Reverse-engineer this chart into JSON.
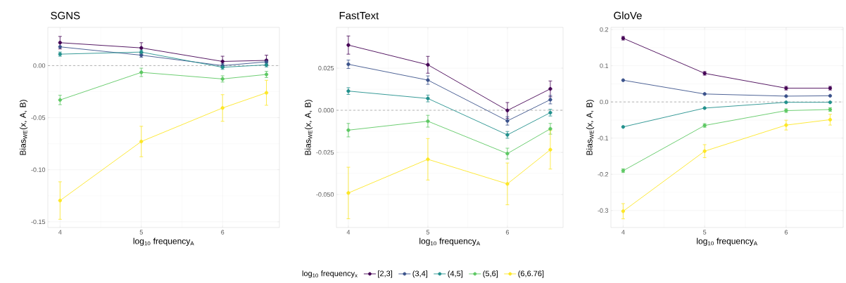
{
  "chart_data": [
    {
      "type": "line",
      "title": "SGNS",
      "xlabel": "log$_{10}$ frequency$_{A}$",
      "ylabel": "Bias$_{WE}$(x, A, B)",
      "x": [
        4,
        5,
        6,
        6.54
      ],
      "xlim": [
        3.85,
        6.7
      ],
      "xticks": [
        4,
        5,
        6
      ],
      "ylim": [
        -0.1555,
        0.0367
      ],
      "yticks": [
        {
          "value": 0,
          "label": "0.00"
        },
        {
          "value": -0.05,
          "label": "-0.05"
        },
        {
          "value": -0.1,
          "label": "-0.10"
        },
        {
          "value": -0.15,
          "label": "-0.15"
        }
      ],
      "grid": true,
      "marker": "circle",
      "line_style": "solid",
      "legend": "bottom",
      "legend_title": "log$_{10}$ frequency$_{x}$",
      "ref_lines": [
        {
          "axis": "y",
          "value": 0,
          "color": "#888888",
          "line_style": "dashed"
        }
      ],
      "series": [
        {
          "name": "[2,3]",
          "color": "#440154",
          "values": [
            0.022,
            0.017,
            0.004,
            0.005
          ],
          "errors": [
            0.006,
            0.005,
            0.005,
            0.005
          ]
        },
        {
          "name": "(3,4]",
          "color": "#3b528b",
          "values": [
            0.018,
            0.01,
            0.0,
            0.0036
          ],
          "errors": [
            null,
            0.002,
            0.002,
            0.002
          ]
        },
        {
          "name": "(4,5]",
          "color": "#21908c",
          "values": [
            0.011,
            0.013,
            -0.0016,
            0.0007
          ],
          "errors": [
            0.002,
            0.002,
            0.002,
            0.002
          ]
        },
        {
          "name": "(5,6]",
          "color": "#5dc863",
          "values": [
            -0.033,
            -0.0065,
            -0.0128,
            -0.0085
          ],
          "errors": [
            0.0045,
            0.004,
            0.003,
            0.003
          ]
        },
        {
          "name": "(6,6.76]",
          "color": "#fde725",
          "values": [
            -0.1296,
            -0.0729,
            -0.0407,
            -0.0261
          ],
          "errors": [
            0.018,
            0.0146,
            0.0128,
            0.012
          ]
        }
      ]
    },
    {
      "type": "line",
      "title": "FastText",
      "xlabel": "log$_{10}$ frequency$_{A}$",
      "ylabel": "Bias$_{WE}$(x, A, B)",
      "x": [
        4,
        5,
        6,
        6.54
      ],
      "xlim": [
        3.85,
        6.7
      ],
      "xticks": [
        4,
        5,
        6
      ],
      "ylim": [
        -0.0696,
        0.0492
      ],
      "yticks": [
        {
          "value": 0.025,
          "label": "0.025"
        },
        {
          "value": 0,
          "label": "0.000"
        },
        {
          "value": -0.025,
          "label": "-0.025"
        },
        {
          "value": -0.05,
          "label": "-0.050"
        }
      ],
      "grid": true,
      "marker": "circle",
      "line_style": "solid",
      "ref_lines": [
        {
          "axis": "y",
          "value": 0,
          "color": "#888888",
          "line_style": "dashed"
        }
      ],
      "series": [
        {
          "color": "#440154",
          "values": [
            0.0387,
            0.027,
            -0.0001,
            0.0127
          ],
          "errors": [
            0.0054,
            0.005,
            0.0047,
            0.0047
          ]
        },
        {
          "color": "#3b528b",
          "values": [
            0.0273,
            0.0179,
            -0.0063,
            0.0063
          ],
          "errors": [
            0.0025,
            0.0025,
            0.0025,
            0.0025
          ]
        },
        {
          "color": "#21908c",
          "values": [
            0.0114,
            0.007,
            -0.0146,
            -0.0014
          ],
          "errors": [
            0.002,
            0.002,
            0.002,
            0.002
          ]
        },
        {
          "color": "#5dc863",
          "values": [
            -0.0118,
            -0.0065,
            -0.0257,
            -0.011
          ],
          "errors": [
            0.004,
            0.0035,
            0.0032,
            0.0032
          ]
        },
        {
          "color": "#fde725",
          "values": [
            -0.0491,
            -0.0291,
            -0.0437,
            -0.0234
          ],
          "errors": [
            0.0153,
            0.0123,
            0.0124,
            0.0115
          ]
        }
      ]
    },
    {
      "type": "line",
      "title": "GloVe",
      "xlabel": "log$_{10}$ frequency$_{A}$",
      "ylabel": "Bias$_{WE}$(x, A, B)",
      "x": [
        4,
        5,
        6,
        6.54
      ],
      "xlim": [
        3.85,
        6.7
      ],
      "xticks": [
        4,
        5,
        6
      ],
      "ylim": [
        -0.347,
        0.206
      ],
      "yticks": [
        {
          "value": 0.2,
          "label": "0.2"
        },
        {
          "value": 0.1,
          "label": "0.1"
        },
        {
          "value": 0,
          "label": "0.0"
        },
        {
          "value": -0.1,
          "label": "-0.1"
        },
        {
          "value": -0.2,
          "label": "-0.2"
        },
        {
          "value": -0.3,
          "label": "-0.3"
        }
      ],
      "grid": true,
      "marker": "circle",
      "line_style": "solid",
      "ref_lines": [
        {
          "axis": "y",
          "value": 0,
          "color": "#888888",
          "line_style": "dashed"
        }
      ],
      "series": [
        {
          "color": "#440154",
          "values": [
            0.176,
            0.079,
            0.038,
            0.038
          ],
          "errors": [
            0.005,
            0.005,
            0.005,
            0.005
          ]
        },
        {
          "color": "#3b528b",
          "values": [
            0.06,
            0.022,
            0.016,
            0.017
          ]
        },
        {
          "color": "#21908c",
          "values": [
            -0.069,
            -0.017,
            -0.001,
            -0.001
          ]
        },
        {
          "color": "#5dc863",
          "values": [
            -0.19,
            -0.065,
            -0.024,
            -0.021
          ],
          "errors": [
            0.005,
            0.005,
            0.005,
            0.005
          ]
        },
        {
          "color": "#fde725",
          "values": [
            -0.302,
            -0.136,
            -0.064,
            -0.049
          ],
          "errors": [
            0.021,
            0.018,
            0.0135,
            0.0149
          ]
        }
      ]
    }
  ]
}
